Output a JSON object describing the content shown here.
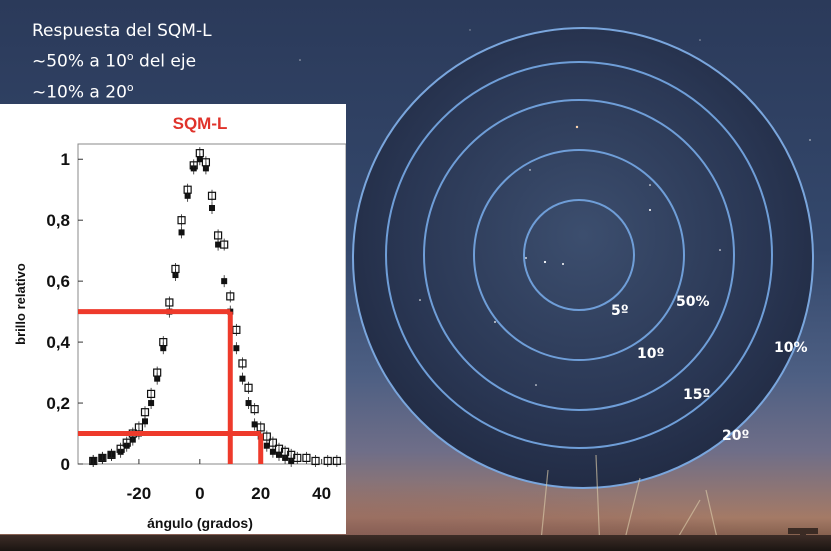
{
  "caption": {
    "line1": "Respuesta del SQM-L",
    "line2_pre": "~50% a 10",
    "line2_sup": "o",
    "line2_post": " del eje",
    "line3_pre": "~10% a 20",
    "line3_sup": "o"
  },
  "circle_labels": {
    "five": "5º",
    "ten": "10º",
    "fifteen": "15º",
    "twenty": "20º",
    "fifty_pct": "50%",
    "ten_pct": "10%"
  },
  "colors": {
    "title_red": "#e0332b",
    "marker_lines": "#ee3a2b",
    "circles": "#6f9ed8"
  },
  "chart_data": {
    "type": "scatter",
    "title": "SQM-L",
    "xlabel": "ángulo (grados)",
    "ylabel": "brillo relativo",
    "xlim": [
      -40,
      48
    ],
    "ylim": [
      0,
      1.05
    ],
    "x_ticks": [
      -20,
      0,
      20,
      40
    ],
    "x_tick_labels": [
      "-20",
      "0",
      "20",
      "40"
    ],
    "y_ticks": [
      0,
      0.2,
      0.4,
      0.6,
      0.8,
      1
    ],
    "y_tick_labels": [
      "0",
      "0,2",
      "0,4",
      "0,6",
      "0,8",
      "1"
    ],
    "markers": [
      {
        "x": 10,
        "y": 0.5
      },
      {
        "x": 20,
        "y": 0.1
      }
    ],
    "series": [
      {
        "marker": "filled-square",
        "x": [
          -35,
          -32,
          -29,
          -26,
          -24,
          -22,
          -20,
          -18,
          -16,
          -14,
          -12,
          -10,
          -8,
          -6,
          -4,
          -2,
          0,
          2,
          4,
          6,
          8,
          10,
          12,
          14,
          16,
          18,
          20,
          22,
          24,
          26,
          28,
          30
        ],
        "y": [
          0.01,
          0.02,
          0.03,
          0.04,
          0.06,
          0.08,
          0.1,
          0.14,
          0.2,
          0.28,
          0.38,
          0.5,
          0.62,
          0.76,
          0.88,
          0.97,
          1.0,
          0.97,
          0.84,
          0.72,
          0.6,
          0.5,
          0.38,
          0.28,
          0.2,
          0.13,
          0.09,
          0.06,
          0.04,
          0.03,
          0.02,
          0.01
        ]
      },
      {
        "marker": "open-square",
        "x": [
          -35,
          -32,
          -29,
          -26,
          -24,
          -22,
          -20,
          -18,
          -16,
          -14,
          -12,
          -10,
          -8,
          -6,
          -4,
          -2,
          0,
          2,
          4,
          6,
          8,
          10,
          12,
          14,
          16,
          18,
          20,
          22,
          24,
          26,
          28,
          30,
          32,
          35,
          38,
          42,
          45
        ],
        "y": [
          0.01,
          0.02,
          0.03,
          0.05,
          0.07,
          0.1,
          0.12,
          0.17,
          0.23,
          0.3,
          0.4,
          0.53,
          0.64,
          0.8,
          0.9,
          0.98,
          1.02,
          0.99,
          0.88,
          0.75,
          0.72,
          0.55,
          0.44,
          0.33,
          0.25,
          0.18,
          0.12,
          0.09,
          0.07,
          0.05,
          0.04,
          0.03,
          0.02,
          0.02,
          0.01,
          0.01,
          0.01
        ]
      }
    ]
  }
}
